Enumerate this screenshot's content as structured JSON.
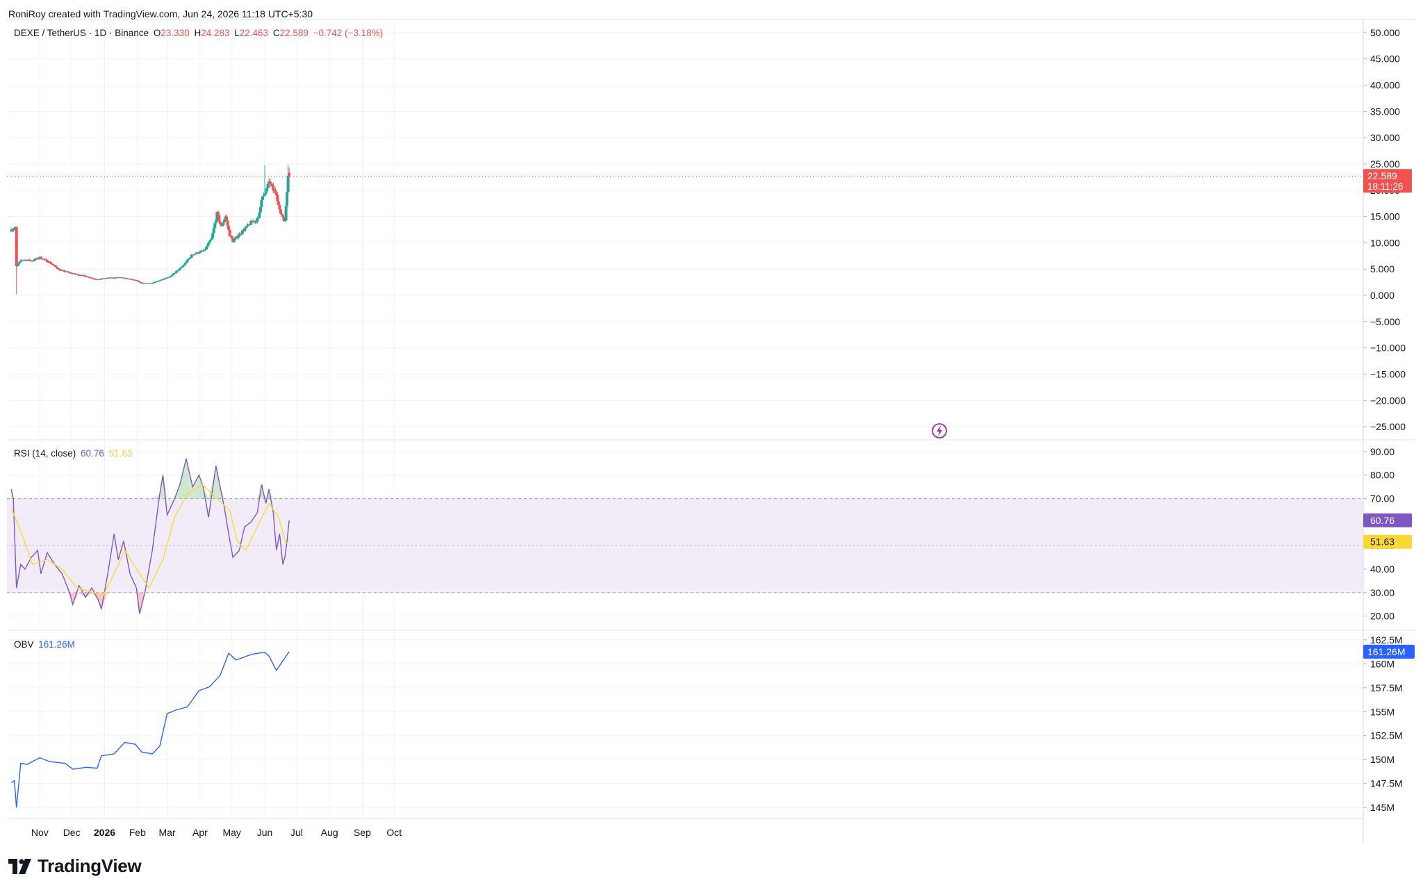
{
  "header": {
    "creator_text": "RoniRoy created with TradingView.com, Jun 24, 2026 11:18 UTC+5:30"
  },
  "price_legend": {
    "symbol": "DEXE / TetherUS · 1D · Binance",
    "o_label": "O",
    "o_value": "23.330",
    "h_label": "H",
    "h_value": "24.283",
    "l_label": "L",
    "l_value": "22.463",
    "c_label": "C",
    "c_value": "22.589",
    "change": "−0.742 (−3.18%)"
  },
  "rsi_legend": {
    "label": "RSI (14, close)",
    "value": "60.76",
    "ma_value": "51.63"
  },
  "obv_legend": {
    "label": "OBV",
    "value": "161.26M"
  },
  "price_badge": {
    "price": "22.589",
    "countdown": "18:11:26"
  },
  "brand": {
    "name": "TradingView",
    "logo_icon": "tradingview-logo-icon"
  },
  "alert_icon": "lightning-icon",
  "colors": {
    "up": "#26a69a",
    "down": "#ef5350",
    "rsi": "#7e57c2",
    "rsi_ma": "#fdd835",
    "rsi_band": "#ede7f6",
    "obv": "#2962ff",
    "text": "#131722",
    "grid": "#f0f3fa"
  },
  "chart_data": [
    {
      "type": "candlestick",
      "title": "DEXE / TetherUS · 1D · Binance",
      "x_labels": [
        "Nov",
        "Dec",
        "2026",
        "Feb",
        "Mar",
        "Apr",
        "May",
        "Jun",
        "Jul",
        "Aug",
        "Sep",
        "Oct"
      ],
      "y_ticks": [
        "50.000",
        "45.000",
        "40.000",
        "35.000",
        "30.000",
        "25.000",
        "20.000",
        "15.000",
        "10.000",
        "5.000",
        "0.000",
        "−5.000",
        "−10.000",
        "−15.000",
        "−20.000",
        "−25.000"
      ],
      "ylim": [
        -27.5,
        52.5
      ],
      "anchors": [
        [
          "2025-10-05",
          12.5
        ],
        [
          "2025-10-09",
          12.8
        ],
        [
          "2025-10-10",
          5.5
        ],
        [
          "2025-10-15",
          6.8
        ],
        [
          "2025-10-25",
          6.6
        ],
        [
          "2025-11-01",
          7.2
        ],
        [
          "2025-11-10",
          6.3
        ],
        [
          "2025-11-20",
          4.8
        ],
        [
          "2025-12-01",
          4.2
        ],
        [
          "2025-12-15",
          3.6
        ],
        [
          "2025-12-25",
          3.0
        ],
        [
          "2026-01-05",
          3.3
        ],
        [
          "2026-01-15",
          3.4
        ],
        [
          "2026-01-30",
          2.9
        ],
        [
          "2026-02-05",
          2.3
        ],
        [
          "2026-02-15",
          2.3
        ],
        [
          "2026-02-25",
          3.1
        ],
        [
          "2026-03-05",
          3.7
        ],
        [
          "2026-03-15",
          5.4
        ],
        [
          "2026-03-25",
          7.8
        ],
        [
          "2026-04-05",
          8.5
        ],
        [
          "2026-04-12",
          10.8
        ],
        [
          "2026-04-17",
          15.5
        ],
        [
          "2026-04-21",
          13.0
        ],
        [
          "2026-04-25",
          15.0
        ],
        [
          "2026-04-29",
          11.5
        ],
        [
          "2026-05-02",
          10.3
        ],
        [
          "2026-05-10",
          12.0
        ],
        [
          "2026-05-20",
          14.0
        ],
        [
          "2026-05-26",
          14.5
        ],
        [
          "2026-05-29",
          18.5
        ],
        [
          "2026-06-01",
          19.0
        ],
        [
          "2026-06-03",
          20.5
        ],
        [
          "2026-06-06",
          21.5
        ],
        [
          "2026-06-09",
          20.0
        ],
        [
          "2026-06-12",
          19.5
        ],
        [
          "2026-06-15",
          16.0
        ],
        [
          "2026-06-18",
          15.0
        ],
        [
          "2026-06-20",
          14.0
        ],
        [
          "2026-06-22",
          20.0
        ],
        [
          "2026-06-23",
          23.3
        ],
        [
          "2026-06-24",
          22.589
        ]
      ],
      "last_candle": {
        "date": "2026-06-24",
        "open": 23.33,
        "high": 24.283,
        "low": 22.463,
        "close": 22.589
      }
    },
    {
      "type": "line",
      "title": "RSI (14, close)",
      "y_ticks": [
        "90.00",
        "80.00",
        "70.00",
        "60.00",
        "50.00",
        "40.00",
        "30.00",
        "20.00"
      ],
      "ylim": [
        14,
        95
      ],
      "band": [
        30,
        70
      ],
      "series": [
        {
          "name": "RSI",
          "points": [
            [
              "2025-10-05",
              74
            ],
            [
              "2025-10-07",
              70
            ],
            [
              "2025-10-10",
              32
            ],
            [
              "2025-10-14",
              42
            ],
            [
              "2025-10-18",
              40
            ],
            [
              "2025-10-24",
              45
            ],
            [
              "2025-10-30",
              48
            ],
            [
              "2025-11-02",
              38
            ],
            [
              "2025-11-08",
              47
            ],
            [
              "2025-11-15",
              42
            ],
            [
              "2025-11-22",
              38
            ],
            [
              "2025-11-29",
              30
            ],
            [
              "2025-12-02",
              25
            ],
            [
              "2025-12-08",
              33
            ],
            [
              "2025-12-14",
              28
            ],
            [
              "2025-12-20",
              32
            ],
            [
              "2025-12-26",
              27
            ],
            [
              "2025-12-29",
              23
            ],
            [
              "2026-01-04",
              38
            ],
            [
              "2026-01-10",
              55
            ],
            [
              "2026-01-14",
              44
            ],
            [
              "2026-01-19",
              52
            ],
            [
              "2026-01-25",
              38
            ],
            [
              "2026-01-31",
              32
            ],
            [
              "2026-02-03",
              21
            ],
            [
              "2026-02-08",
              30
            ],
            [
              "2026-02-15",
              48
            ],
            [
              "2026-02-22",
              72
            ],
            [
              "2026-02-25",
              80
            ],
            [
              "2026-03-01",
              63
            ],
            [
              "2026-03-08",
              70
            ],
            [
              "2026-03-13",
              76
            ],
            [
              "2026-03-19",
              87
            ],
            [
              "2026-03-25",
              75
            ],
            [
              "2026-03-31",
              80
            ],
            [
              "2026-04-04",
              75
            ],
            [
              "2026-04-09",
              62
            ],
            [
              "2026-04-16",
              84
            ],
            [
              "2026-04-20",
              75
            ],
            [
              "2026-04-24",
              66
            ],
            [
              "2026-04-28",
              55
            ],
            [
              "2026-05-02",
              45
            ],
            [
              "2026-05-08",
              48
            ],
            [
              "2026-05-13",
              58
            ],
            [
              "2026-05-19",
              60
            ],
            [
              "2026-05-25",
              64
            ],
            [
              "2026-05-29",
              76
            ],
            [
              "2026-06-02",
              68
            ],
            [
              "2026-06-05",
              74
            ],
            [
              "2026-06-09",
              64
            ],
            [
              "2026-06-12",
              48
            ],
            [
              "2026-06-15",
              55
            ],
            [
              "2026-06-18",
              42
            ],
            [
              "2026-06-20",
              45
            ],
            [
              "2026-06-22",
              52
            ],
            [
              "2026-06-24",
              60.76
            ]
          ]
        },
        {
          "name": "RSI MA",
          "points": [
            [
              "2025-10-05",
              66
            ],
            [
              "2025-10-15",
              55
            ],
            [
              "2025-10-25",
              42
            ],
            [
              "2025-11-08",
              44
            ],
            [
              "2025-11-22",
              40
            ],
            [
              "2025-12-06",
              32
            ],
            [
              "2025-12-22",
              30
            ],
            [
              "2025-12-30",
              28
            ],
            [
              "2026-01-10",
              38
            ],
            [
              "2026-01-20",
              48
            ],
            [
              "2026-02-03",
              38
            ],
            [
              "2026-02-12",
              32
            ],
            [
              "2026-02-25",
              44
            ],
            [
              "2026-03-08",
              62
            ],
            [
              "2026-03-20",
              72
            ],
            [
              "2026-04-03",
              76
            ],
            [
              "2026-04-17",
              70
            ],
            [
              "2026-04-29",
              65
            ],
            [
              "2026-05-06",
              52
            ],
            [
              "2026-05-14",
              48
            ],
            [
              "2026-05-26",
              59
            ],
            [
              "2026-06-05",
              68
            ],
            [
              "2026-06-14",
              62
            ],
            [
              "2026-06-21",
              51
            ],
            [
              "2026-06-24",
              51.63
            ]
          ]
        }
      ]
    },
    {
      "type": "line",
      "title": "OBV",
      "y_ticks": [
        "162.5M",
        "160M",
        "157.5M",
        "155M",
        "152.5M",
        "150M",
        "147.5M",
        "145M"
      ],
      "ylim": [
        144,
        163.5
      ],
      "series": [
        {
          "name": "OBV",
          "points": [
            [
              "2025-10-05",
              147.6
            ],
            [
              "2025-10-08",
              147.8
            ],
            [
              "2025-10-10",
              145.0
            ],
            [
              "2025-10-14",
              149.6
            ],
            [
              "2025-10-20",
              149.5
            ],
            [
              "2025-11-01",
              150.2
            ],
            [
              "2025-11-10",
              149.8
            ],
            [
              "2025-11-25",
              149.6
            ],
            [
              "2025-12-02",
              149.0
            ],
            [
              "2025-12-15",
              149.2
            ],
            [
              "2025-12-25",
              149.1
            ],
            [
              "2025-12-29",
              150.4
            ],
            [
              "2026-01-10",
              150.6
            ],
            [
              "2026-01-20",
              151.8
            ],
            [
              "2026-01-30",
              151.6
            ],
            [
              "2026-02-05",
              150.8
            ],
            [
              "2026-02-15",
              150.6
            ],
            [
              "2026-02-22",
              151.4
            ],
            [
              "2026-03-01",
              154.8
            ],
            [
              "2026-03-10",
              155.2
            ],
            [
              "2026-03-20",
              155.5
            ],
            [
              "2026-03-31",
              157.2
            ],
            [
              "2026-04-10",
              157.6
            ],
            [
              "2026-04-20",
              158.8
            ],
            [
              "2026-04-28",
              161.1
            ],
            [
              "2026-05-05",
              160.4
            ],
            [
              "2026-05-20",
              161.0
            ],
            [
              "2026-06-01",
              161.2
            ],
            [
              "2026-06-05",
              160.8
            ],
            [
              "2026-06-12",
              159.3
            ],
            [
              "2026-06-18",
              160.3
            ],
            [
              "2026-06-24",
              161.26
            ]
          ]
        }
      ]
    }
  ]
}
